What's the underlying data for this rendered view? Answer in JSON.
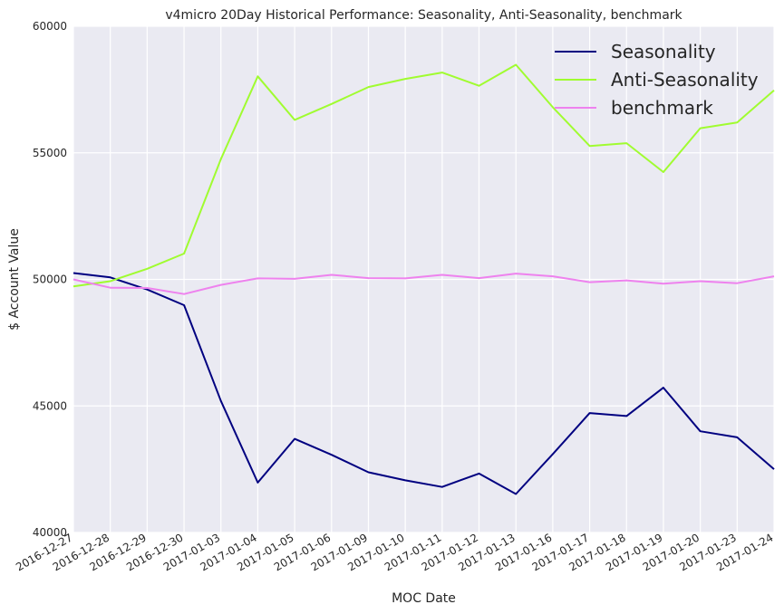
{
  "chart_data": {
    "type": "line",
    "title": "v4micro 20Day Historical Performance: Seasonality, Anti-Seasonality, benchmark",
    "xlabel": "MOC Date",
    "ylabel": "$ Account Value",
    "ylim": [
      40000,
      60000
    ],
    "yticks": [
      "40000",
      "45000",
      "50000",
      "55000",
      "60000"
    ],
    "ytick_values": [
      40000,
      45000,
      50000,
      55000,
      60000
    ],
    "grid": true,
    "legend_position": "top-right",
    "categories": [
      "2016-12-27",
      "2016-12-28",
      "2016-12-29",
      "2016-12-30",
      "2017-01-03",
      "2017-01-04",
      "2017-01-05",
      "2017-01-06",
      "2017-01-09",
      "2017-01-10",
      "2017-01-11",
      "2017-01-12",
      "2017-01-13",
      "2017-01-16",
      "2017-01-17",
      "2017-01-18",
      "2017-01-19",
      "2017-01-20",
      "2017-01-23",
      "2017-01-24"
    ],
    "series": [
      {
        "name": "Seasonality",
        "color": "#000080",
        "values": [
          50250,
          50080,
          49600,
          48980,
          45200,
          41970,
          43700,
          43070,
          42380,
          42060,
          41800,
          42330,
          41520,
          43100,
          44720,
          44600,
          45720,
          44000,
          43760,
          42500
        ]
      },
      {
        "name": "Anti-Seasonality",
        "color": "#a0fc30",
        "values": [
          49720,
          49930,
          50420,
          51020,
          54750,
          58020,
          56300,
          56930,
          57600,
          57920,
          58170,
          57650,
          58480,
          56800,
          55270,
          55380,
          54240,
          55970,
          56200,
          57470
        ]
      },
      {
        "name": "benchmark",
        "color": "#ee82ee",
        "values": [
          50000,
          49670,
          49660,
          49420,
          49780,
          50040,
          50020,
          50180,
          50050,
          50040,
          50180,
          50050,
          50230,
          50120,
          49890,
          49960,
          49830,
          49930,
          49850,
          50120
        ]
      }
    ]
  }
}
